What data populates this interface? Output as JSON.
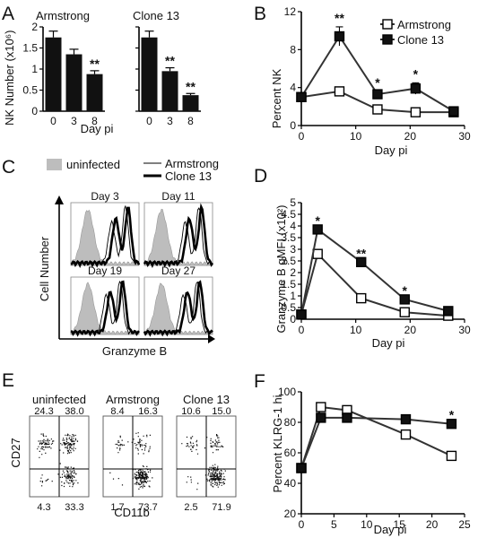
{
  "panel_labels": {
    "A": "A",
    "B": "B",
    "C": "C",
    "D": "D",
    "E": "E",
    "F": "F"
  },
  "colors": {
    "bar": "#111111",
    "open_marker": "#ffffff",
    "line": "#333333",
    "histogram_fill": "#bdbdbd"
  },
  "chart_data": [
    {
      "panel": "A-left",
      "type": "bar",
      "title": "Armstrong",
      "ylabel": "NK Number (x10⁶)",
      "xlabel": "Day pi",
      "categories": [
        "0",
        "3",
        "8"
      ],
      "values": [
        1.75,
        1.35,
        0.88
      ],
      "errors": [
        0.15,
        0.12,
        0.08
      ],
      "ylim": [
        0,
        2
      ],
      "yticks": [
        "0",
        "0.5",
        "1",
        "1.5",
        "2"
      ],
      "annotations": [
        "",
        "",
        "**"
      ]
    },
    {
      "panel": "A-right",
      "type": "bar",
      "title": "Clone 13",
      "categories": [
        "0",
        "3",
        "8"
      ],
      "values": [
        1.75,
        0.95,
        0.38
      ],
      "errors": [
        0.15,
        0.08,
        0.04
      ],
      "ylim": [
        0,
        2
      ],
      "annotations": [
        "",
        "**",
        "**"
      ]
    },
    {
      "panel": "B",
      "type": "line",
      "ylabel": "Percent NK",
      "xlabel": "Day pi",
      "xlim": [
        0,
        30
      ],
      "ylim": [
        0,
        12
      ],
      "xticks": [
        "0",
        "10",
        "20",
        "30"
      ],
      "yticks": [
        "0",
        "4",
        "8",
        "12"
      ],
      "series": [
        {
          "name": "Armstrong",
          "marker": "open-square",
          "x": [
            0,
            7,
            14,
            21,
            28
          ],
          "y": [
            3.0,
            3.6,
            1.7,
            1.4,
            1.4
          ],
          "err": [
            0.3,
            0.3,
            0.2,
            0.2,
            0.2
          ]
        },
        {
          "name": "Clone 13",
          "marker": "filled-square",
          "x": [
            0,
            7,
            14,
            21,
            28
          ],
          "y": [
            3.0,
            9.4,
            3.3,
            3.9,
            1.5
          ],
          "err": [
            0.3,
            1.0,
            0.3,
            0.6,
            0.3
          ]
        }
      ],
      "annotations": [
        {
          "x": 7,
          "text": "**"
        },
        {
          "x": 14,
          "text": "*"
        },
        {
          "x": 21,
          "text": "*"
        }
      ]
    },
    {
      "panel": "D",
      "type": "line",
      "ylabel": "Granzyme B gMFI (x10²)",
      "xlabel": "Day pi",
      "xlim": [
        0,
        30
      ],
      "ylim": [
        0,
        5
      ],
      "xticks": [
        "0",
        "10",
        "20",
        "30"
      ],
      "yticks": [
        "0",
        "0.5",
        "1",
        "1.5",
        "2",
        "2.5",
        "3",
        "3.5",
        "4",
        "4.5",
        "5"
      ],
      "series": [
        {
          "name": "Armstrong",
          "marker": "open-square",
          "x": [
            0,
            3,
            11,
            19,
            27
          ],
          "y": [
            0.2,
            2.8,
            0.9,
            0.3,
            0.15
          ]
        },
        {
          "name": "Clone 13",
          "marker": "filled-square",
          "x": [
            0,
            3,
            11,
            19,
            27
          ],
          "y": [
            0.2,
            3.85,
            2.45,
            0.85,
            0.35
          ]
        }
      ],
      "annotations": [
        {
          "x": 3,
          "text": "*"
        },
        {
          "x": 11,
          "text": "**"
        },
        {
          "x": 19,
          "text": "*"
        }
      ]
    },
    {
      "panel": "F",
      "type": "line",
      "ylabel": "Percent KLRG-1 hi",
      "xlabel": "Day pi",
      "xlim": [
        0,
        25
      ],
      "ylim": [
        20,
        100
      ],
      "xticks": [
        "0",
        "5",
        "10",
        "15",
        "20",
        "25"
      ],
      "yticks": [
        "20",
        "40",
        "60",
        "80",
        "100"
      ],
      "series": [
        {
          "name": "Armstrong",
          "marker": "open-square",
          "x": [
            0,
            3,
            7,
            16,
            23
          ],
          "y": [
            50,
            90,
            88,
            72,
            58
          ]
        },
        {
          "name": "Clone 13",
          "marker": "filled-square",
          "x": [
            0,
            3,
            7,
            16,
            23
          ],
          "y": [
            50,
            83,
            83,
            82,
            79
          ]
        }
      ],
      "annotations": [
        {
          "x": 23,
          "text": "*"
        }
      ]
    }
  ],
  "panel_c": {
    "legend": {
      "uninfected": "uninfected",
      "armstrong": "Armstrong",
      "clone13": "Clone 13"
    },
    "ylabel": "Cell Number",
    "xlabel": "Granzyme B",
    "days": [
      "Day 3",
      "Day 11",
      "Day 19",
      "Day 27"
    ]
  },
  "panel_e": {
    "ylabel": "CD27",
    "xlabel": "CD11b",
    "plots": [
      {
        "title": "uninfected",
        "q": [
          "24.3",
          "38.0",
          "4.3",
          "33.3"
        ]
      },
      {
        "title": "Armstrong",
        "q": [
          "8.4",
          "16.3",
          "1.7",
          "73.7"
        ]
      },
      {
        "title": "Clone 13",
        "q": [
          "10.6",
          "15.0",
          "2.5",
          "71.9"
        ]
      }
    ]
  }
}
